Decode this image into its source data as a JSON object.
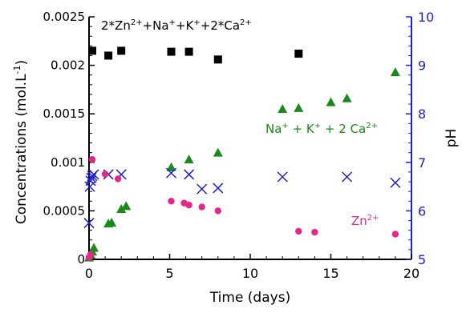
{
  "colors": {
    "total": "#000000",
    "na_k_ca": "#1a8a1a",
    "ph": "#2020d0",
    "zn": "#e8258a"
  },
  "chart_data": {
    "type": "scatter",
    "xlabel": "Time (days)",
    "ylabel": "Concentrations (mol.L",
    "ylabel_sup": "-1",
    "ylabel_tail": ")",
    "y2label": "pH",
    "xlim": [
      0,
      20
    ],
    "ylim": [
      0,
      0.0025
    ],
    "y2lim": [
      5,
      10
    ],
    "xticks": [
      0,
      5,
      10,
      15,
      20
    ],
    "yticks": [
      0,
      0.0005,
      0.001,
      0.0015,
      0.002,
      0.0025
    ],
    "ytick_labels": [
      "0",
      "0.0005",
      "0.001",
      "0.0015",
      "0.002",
      "0.0025"
    ],
    "y2ticks": [
      5,
      6,
      7,
      8,
      9,
      10
    ],
    "grid": false,
    "series": [
      {
        "key": "total",
        "marker": "square",
        "axis": "left",
        "label_parts": [
          [
            "2*Zn",
            ""
          ],
          [
            "2+",
            "sup"
          ],
          [
            "+Na",
            ""
          ],
          [
            "+",
            "sup"
          ],
          [
            "+K",
            ""
          ],
          [
            "+",
            "sup"
          ],
          [
            "+2*Ca",
            ""
          ],
          [
            "2+",
            "sup"
          ]
        ],
        "x": [
          0.2,
          1.2,
          2.0,
          5.1,
          6.2,
          8.0,
          13.0
        ],
        "y": [
          0.00215,
          0.0021,
          0.00215,
          0.00214,
          0.00214,
          0.00206,
          0.00212
        ]
      },
      {
        "key": "na_k_ca",
        "marker": "triangle",
        "axis": "left",
        "label_parts": [
          [
            "Na",
            ""
          ],
          [
            "+",
            "sup"
          ],
          [
            " + K",
            ""
          ],
          [
            "+",
            "sup"
          ],
          [
            " + 2 Ca",
            ""
          ],
          [
            "2+",
            "sup"
          ]
        ],
        "x": [
          0.0,
          0.1,
          0.2,
          0.3,
          1.2,
          1.4,
          2.0,
          2.3,
          5.1,
          6.2,
          8.0,
          12.0,
          13.0,
          15.0,
          16.0,
          19.0
        ],
        "y": [
          2e-05,
          5e-05,
          8e-05,
          0.00012,
          0.00037,
          0.00038,
          0.00052,
          0.00055,
          0.00095,
          0.00103,
          0.0011,
          0.00155,
          0.00156,
          0.00162,
          0.00166,
          0.00193
        ]
      },
      {
        "key": "ph",
        "marker": "x",
        "axis": "right",
        "label_parts": [],
        "x": [
          0.0,
          0.05,
          0.1,
          0.15,
          0.2,
          0.3,
          1.2,
          2.0,
          5.1,
          6.2,
          7.0,
          8.0,
          12.0,
          16.0,
          19.0
        ],
        "y": [
          5.75,
          6.5,
          6.62,
          6.68,
          6.72,
          6.75,
          6.75,
          6.75,
          6.78,
          6.75,
          6.45,
          6.47,
          6.7,
          6.7,
          6.58
        ]
      },
      {
        "key": "zn",
        "marker": "circle",
        "axis": "left",
        "label_parts": [
          [
            "Zn",
            ""
          ],
          [
            "2+",
            "sup"
          ]
        ],
        "x": [
          0.0,
          0.1,
          0.2,
          1.0,
          1.8,
          5.1,
          5.9,
          6.2,
          7.0,
          8.0,
          13.0,
          14.0,
          19.0
        ],
        "y": [
          2e-05,
          5e-05,
          0.00103,
          0.00088,
          0.00083,
          0.0006,
          0.00058,
          0.00056,
          0.00054,
          0.0005,
          0.00029,
          0.00028,
          0.00026
        ]
      }
    ]
  }
}
